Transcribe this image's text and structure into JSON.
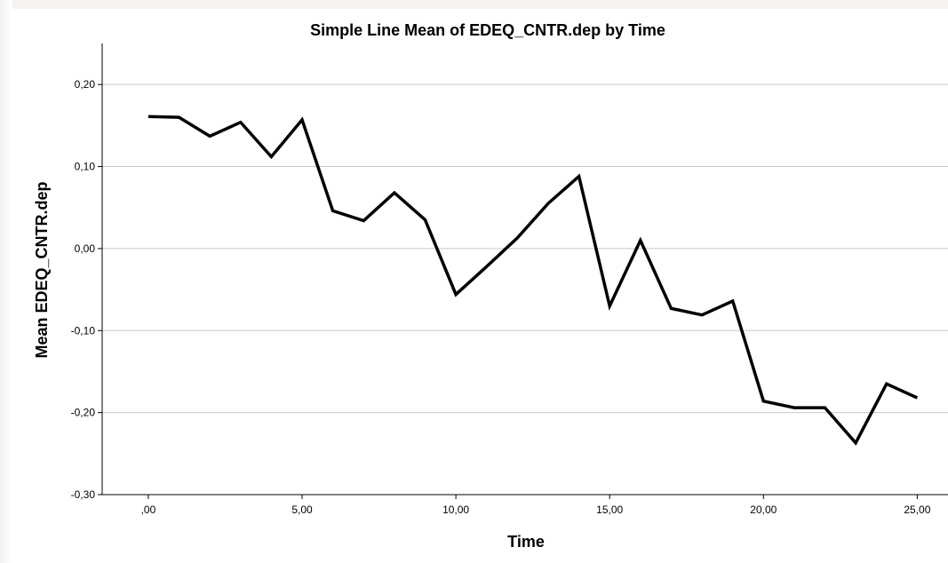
{
  "chart_data": {
    "type": "line",
    "title": "Simple Line Mean of EDEQ_CNTR.dep by Time",
    "xlabel": "Time",
    "ylabel": "Mean EDEQ_CNTR.dep",
    "xlim": [
      -1.5,
      26.0
    ],
    "ylim": [
      -0.3,
      0.25
    ],
    "xticks": [
      0,
      5,
      10,
      15,
      20,
      25
    ],
    "xtick_labels": [
      ",00",
      "5,00",
      "10,00",
      "15,00",
      "20,00",
      "25,00"
    ],
    "yticks": [
      0.2,
      0.1,
      0.0,
      -0.1,
      -0.2,
      -0.3
    ],
    "ytick_labels": [
      "0,20",
      "0,10",
      "0,00",
      "-0,10",
      "-0,20",
      "-0,30"
    ],
    "grid": "horizontal",
    "legend": "none",
    "line_color": "#000000",
    "series": [
      {
        "x": [
          0,
          1,
          2,
          3,
          4,
          5,
          6,
          7,
          8,
          9,
          10,
          11,
          12,
          13,
          14,
          15,
          16,
          17,
          18,
          19,
          20,
          21,
          22,
          23,
          24,
          25
        ],
        "values": [
          0.161,
          0.16,
          0.137,
          0.154,
          0.112,
          0.157,
          0.046,
          0.034,
          0.068,
          0.035,
          -0.056,
          -0.022,
          0.013,
          0.055,
          0.088,
          -0.07,
          0.01,
          -0.073,
          -0.081,
          -0.064,
          -0.186,
          -0.194,
          -0.194,
          -0.237,
          -0.165,
          -0.182
        ]
      }
    ]
  }
}
